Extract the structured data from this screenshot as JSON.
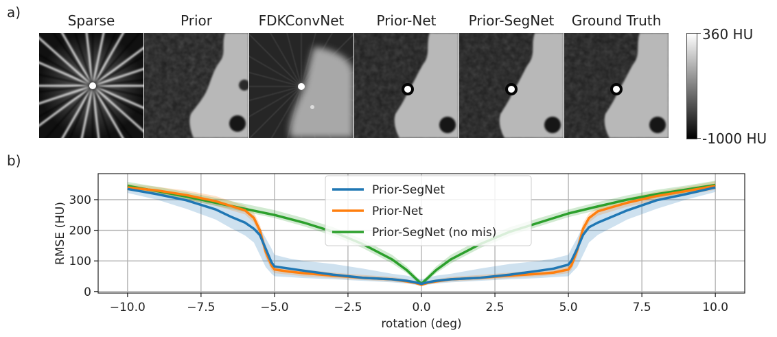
{
  "panel_a_label": "a)",
  "panel_b_label": "b)",
  "images": [
    {
      "title": "Sparse",
      "icon": "sparse-streak-reconstruction"
    },
    {
      "title": "Prior",
      "icon": "prior-ct-slice"
    },
    {
      "title": "FDKConvNet",
      "icon": "fdkconvnet-ct-slice"
    },
    {
      "title": "Prior-Net",
      "icon": "prior-net-ct-slice"
    },
    {
      "title": "Prior-SegNet",
      "icon": "prior-segnet-ct-slice"
    },
    {
      "title": "Ground Truth",
      "icon": "ground-truth-ct-slice"
    }
  ],
  "colorbar": {
    "max_label": "360 HU",
    "min_label": "-1000 HU",
    "max": 360,
    "min": -1000
  },
  "colors": {
    "prior_segnet": "#1f77b4",
    "prior_net": "#ff7f0e",
    "no_mis": "#2ca02c"
  },
  "chart_data": {
    "type": "line",
    "xlabel": "rotation (deg)",
    "ylabel": "RMSE (HU)",
    "xlim": [
      -11,
      11
    ],
    "ylim": [
      -5,
      385
    ],
    "xticks": [
      -10,
      -7.5,
      -5,
      -2.5,
      0,
      2.5,
      5,
      7.5,
      10
    ],
    "xtick_labels": [
      "−10.0",
      "−7.5",
      "−5.0",
      "−2.5",
      "0.0",
      "2.5",
      "5.0",
      "7.5",
      "10.0"
    ],
    "yticks": [
      0,
      100,
      200,
      300
    ],
    "ytick_labels": [
      "0",
      "100",
      "200",
      "300"
    ],
    "grid": true,
    "legend_position": "top-center",
    "series": [
      {
        "name": "Prior-SegNet",
        "x": [
          -10,
          -9,
          -8,
          -7,
          -6.5,
          -6,
          -5.7,
          -5.5,
          -5.3,
          -5.1,
          -5,
          -4.5,
          -4,
          -3,
          -2,
          -1,
          -0.5,
          -0.2,
          0,
          0.2,
          0.5,
          1,
          2,
          3,
          4,
          4.5,
          5,
          5.1,
          5.3,
          5.5,
          5.7,
          6,
          6.5,
          7,
          8,
          9,
          10
        ],
        "y": [
          335,
          318,
          298,
          268,
          245,
          225,
          205,
          185,
          140,
          95,
          82,
          75,
          68,
          55,
          45,
          40,
          35,
          30,
          25,
          30,
          35,
          40,
          45,
          55,
          68,
          75,
          88,
          100,
          140,
          185,
          210,
          225,
          245,
          265,
          298,
          318,
          340
        ],
        "lower": [
          322,
          300,
          270,
          235,
          208,
          183,
          160,
          120,
          80,
          58,
          50,
          47,
          44,
          40,
          35,
          30,
          26,
          22,
          18,
          22,
          26,
          30,
          35,
          40,
          44,
          47,
          50,
          60,
          80,
          120,
          160,
          185,
          210,
          235,
          270,
          300,
          325
        ],
        "upper": [
          345,
          330,
          315,
          295,
          280,
          265,
          250,
          210,
          175,
          140,
          120,
          108,
          100,
          90,
          75,
          58,
          52,
          45,
          40,
          45,
          52,
          58,
          75,
          90,
          100,
          108,
          120,
          140,
          175,
          215,
          245,
          262,
          278,
          292,
          315,
          330,
          352
        ]
      },
      {
        "name": "Prior-Net",
        "x": [
          -10,
          -9,
          -8,
          -7,
          -6,
          -5.7,
          -5.5,
          -5.3,
          -5.1,
          -5,
          -4.5,
          -4,
          -3,
          -2,
          -1,
          -0.5,
          -0.2,
          0,
          0.2,
          0.5,
          1,
          2,
          3,
          4,
          4.5,
          5,
          5.1,
          5.3,
          5.5,
          5.7,
          6,
          7,
          8,
          9,
          10
        ],
        "y": [
          340,
          330,
          315,
          295,
          265,
          240,
          200,
          130,
          85,
          72,
          65,
          60,
          52,
          45,
          40,
          33,
          28,
          22,
          28,
          33,
          40,
          45,
          52,
          58,
          62,
          72,
          85,
          135,
          205,
          240,
          262,
          290,
          312,
          328,
          345
        ],
        "lower": [
          330,
          318,
          300,
          280,
          252,
          225,
          180,
          110,
          70,
          60,
          55,
          50,
          44,
          38,
          33,
          28,
          24,
          18,
          24,
          28,
          33,
          38,
          44,
          50,
          54,
          60,
          70,
          115,
          185,
          225,
          248,
          277,
          298,
          315,
          332
        ],
        "upper": [
          352,
          342,
          330,
          312,
          280,
          258,
          220,
          152,
          102,
          86,
          78,
          72,
          62,
          54,
          48,
          40,
          34,
          28,
          34,
          40,
          48,
          54,
          62,
          70,
          74,
          86,
          102,
          155,
          225,
          255,
          276,
          305,
          326,
          342,
          360
        ]
      },
      {
        "name": "Prior-SegNet (no mis)",
        "x": [
          -10,
          -9,
          -8,
          -7,
          -6,
          -5,
          -4,
          -3,
          -2,
          -1,
          -0.5,
          0,
          0.5,
          1,
          2,
          3,
          4,
          5,
          6,
          7,
          8,
          9,
          10
        ],
        "y": [
          345,
          328,
          310,
          290,
          270,
          250,
          225,
          195,
          155,
          105,
          70,
          25,
          70,
          105,
          155,
          195,
          225,
          255,
          278,
          300,
          318,
          333,
          348
        ],
        "lower": [
          335,
          318,
          300,
          280,
          260,
          240,
          213,
          182,
          142,
          92,
          60,
          18,
          60,
          92,
          142,
          182,
          213,
          243,
          266,
          288,
          306,
          322,
          338
        ],
        "upper": [
          358,
          342,
          325,
          306,
          286,
          266,
          240,
          210,
          170,
          120,
          82,
          32,
          82,
          120,
          170,
          210,
          240,
          268,
          292,
          314,
          332,
          346,
          362
        ]
      }
    ]
  }
}
